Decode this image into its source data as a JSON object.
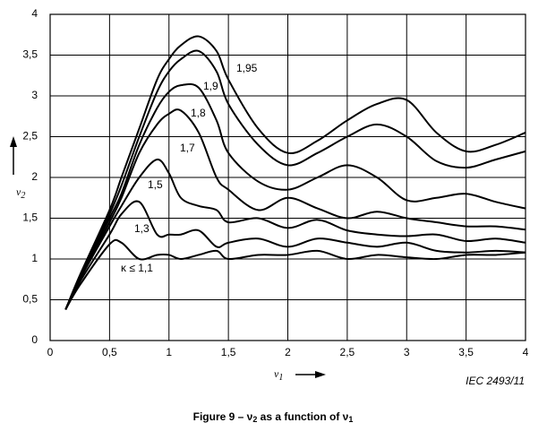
{
  "chart_data": {
    "type": "line",
    "title": [
      "Figure 9 – ν",
      "2",
      " as a function of ν",
      "1"
    ],
    "xlabel": [
      "ν",
      "1"
    ],
    "ylabel": [
      "ν",
      "2"
    ],
    "source": "IEC  2493/11",
    "x": [
      0.13,
      0.25,
      0.5,
      0.6,
      0.75,
      0.9,
      1.0,
      1.1,
      1.25,
      1.4,
      1.5,
      1.75,
      2.0,
      2.25,
      2.5,
      2.75,
      3.0,
      3.25,
      3.5,
      3.75,
      4.0
    ],
    "series": [
      {
        "name": "1,95",
        "color": "#000000",
        "values": [
          0.38,
          0.8,
          1.6,
          2.0,
          2.6,
          3.2,
          3.45,
          3.62,
          3.73,
          3.55,
          3.2,
          2.6,
          2.3,
          2.45,
          2.7,
          2.9,
          2.95,
          2.55,
          2.32,
          2.4,
          2.55
        ]
      },
      {
        "name": "1,9",
        "color": "#000000",
        "values": [
          0.38,
          0.78,
          1.55,
          1.9,
          2.5,
          3.05,
          3.3,
          3.45,
          3.55,
          3.3,
          2.9,
          2.4,
          2.15,
          2.3,
          2.5,
          2.65,
          2.5,
          2.2,
          2.12,
          2.22,
          2.32
        ]
      },
      {
        "name": "1,8",
        "color": "#000000",
        "values": [
          0.38,
          0.77,
          1.5,
          1.8,
          2.4,
          2.85,
          3.05,
          3.13,
          3.1,
          2.7,
          2.3,
          1.95,
          1.85,
          2.0,
          2.15,
          2.0,
          1.72,
          1.75,
          1.8,
          1.7,
          1.62
        ]
      },
      {
        "name": "1,7",
        "color": "#000000",
        "values": [
          0.38,
          0.76,
          1.45,
          1.75,
          2.3,
          2.65,
          2.78,
          2.82,
          2.55,
          2.0,
          1.85,
          1.6,
          1.75,
          1.62,
          1.5,
          1.58,
          1.5,
          1.45,
          1.4,
          1.4,
          1.36
        ]
      },
      {
        "name": "1,5",
        "color": "#000000",
        "values": [
          0.38,
          0.75,
          1.4,
          1.65,
          2.0,
          2.22,
          2.05,
          1.75,
          1.65,
          1.6,
          1.45,
          1.5,
          1.38,
          1.48,
          1.35,
          1.3,
          1.28,
          1.3,
          1.22,
          1.25,
          1.2
        ]
      },
      {
        "name": "1,3",
        "color": "#000000",
        "values": [
          0.38,
          0.72,
          1.3,
          1.55,
          1.7,
          1.3,
          1.3,
          1.3,
          1.35,
          1.15,
          1.2,
          1.25,
          1.15,
          1.25,
          1.2,
          1.15,
          1.2,
          1.1,
          1.08,
          1.1,
          1.08
        ]
      },
      {
        "name": "κ  ≤ 1,1",
        "color": "#000000",
        "values": [
          0.38,
          0.68,
          1.18,
          1.2,
          1.0,
          1.05,
          1.05,
          1.0,
          1.05,
          1.1,
          1.0,
          1.05,
          1.05,
          1.1,
          1.0,
          1.05,
          1.02,
          1.0,
          1.05,
          1.05,
          1.08
        ]
      }
    ],
    "xlim": [
      0,
      4
    ],
    "ylim": [
      0,
      4
    ],
    "xticks": [
      0,
      {
        "value": 0.5,
        "label": "0,5"
      },
      1,
      {
        "value": 1.5,
        "label": "1,5"
      },
      2,
      {
        "value": 2.5,
        "label": "2,5"
      },
      3,
      {
        "value": 3.5,
        "label": "3,5"
      },
      4
    ],
    "yticks": [
      0,
      {
        "value": 0.5,
        "label": "0,5"
      },
      1,
      {
        "value": 1.5,
        "label": "1,5"
      },
      2,
      {
        "value": 2.5,
        "label": "2,5"
      },
      3,
      {
        "value": 3.5,
        "label": "3,5"
      },
      4
    ],
    "grid": true
  }
}
